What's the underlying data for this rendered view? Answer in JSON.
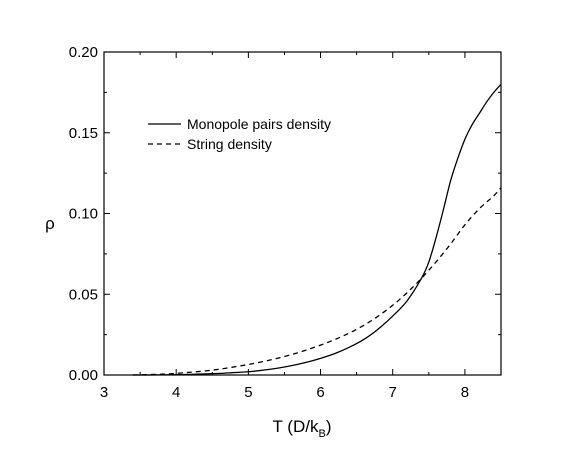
{
  "chart_data": {
    "type": "line",
    "xlabel": "T (D/k",
    "xlabel_sub": "B",
    "xlabel_end": ")",
    "ylabel": "ρ",
    "xlim": [
      3,
      8.5
    ],
    "ylim": [
      0,
      0.2
    ],
    "x_ticks": [
      3,
      4,
      5,
      6,
      7,
      8
    ],
    "x_tick_labels": [
      "3",
      "4",
      "5",
      "6",
      "7",
      "8"
    ],
    "y_ticks": [
      0,
      0.05,
      0.1,
      0.15,
      0.2
    ],
    "y_tick_labels": [
      "0.00",
      "0.05",
      "0.10",
      "0.15",
      "0.20"
    ],
    "x_minor_step": 0.5,
    "y_minor_step": 0.025,
    "grid": false,
    "legend_position": "top-left",
    "series": [
      {
        "name": "Monopole pairs density",
        "style": "solid",
        "color": "#000000",
        "x": [
          3.4,
          3.6,
          3.8,
          4.0,
          4.2,
          4.4,
          4.6,
          4.8,
          5.0,
          5.2,
          5.4,
          5.6,
          5.8,
          6.0,
          6.2,
          6.4,
          6.6,
          6.8,
          7.0,
          7.2,
          7.4,
          7.5,
          7.6,
          7.7,
          7.8,
          7.9,
          8.0,
          8.1,
          8.2,
          8.3,
          8.4,
          8.5
        ],
        "y": [
          0.0,
          0.0,
          0.0001,
          0.0002,
          0.0004,
          0.0007,
          0.001,
          0.0015,
          0.002,
          0.003,
          0.0042,
          0.0058,
          0.0078,
          0.0103,
          0.0133,
          0.0172,
          0.022,
          0.0285,
          0.0365,
          0.046,
          0.06,
          0.07,
          0.085,
          0.102,
          0.12,
          0.134,
          0.146,
          0.155,
          0.162,
          0.169,
          0.175,
          0.18
        ]
      },
      {
        "name": "String density",
        "style": "dashed",
        "color": "#000000",
        "x": [
          3.4,
          3.6,
          3.8,
          4.0,
          4.2,
          4.4,
          4.6,
          4.8,
          5.0,
          5.2,
          5.4,
          5.6,
          5.8,
          6.0,
          6.2,
          6.4,
          6.6,
          6.8,
          7.0,
          7.2,
          7.4,
          7.6,
          7.8,
          8.0,
          8.2,
          8.4,
          8.5
        ],
        "y": [
          0.0,
          0.0002,
          0.0005,
          0.001,
          0.0017,
          0.0025,
          0.0036,
          0.005,
          0.0065,
          0.0083,
          0.0103,
          0.0127,
          0.0154,
          0.0185,
          0.022,
          0.026,
          0.0308,
          0.0365,
          0.0432,
          0.051,
          0.06,
          0.07,
          0.081,
          0.093,
          0.103,
          0.111,
          0.116
        ]
      }
    ]
  }
}
